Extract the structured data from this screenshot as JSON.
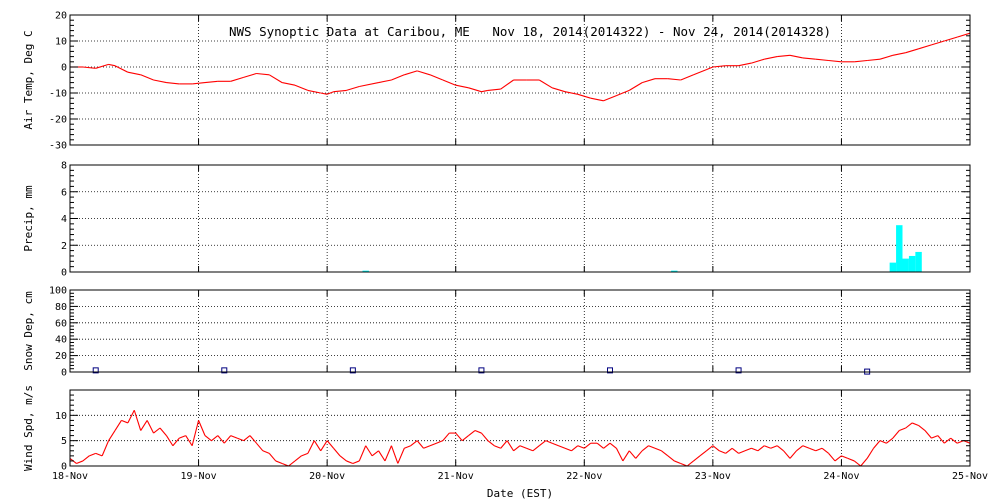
{
  "chart_data": {
    "type": "line",
    "title": "NWS Synoptic Data at Caribou, ME   Nov 18, 2014(2014322) - Nov 24, 2014(2014328)",
    "xlabel": "Date (EST)",
    "x_ticks": [
      "18-Nov",
      "19-Nov",
      "20-Nov",
      "21-Nov",
      "22-Nov",
      "23-Nov",
      "24-Nov",
      "25-Nov"
    ],
    "xlim": [
      0,
      7
    ],
    "grid": true,
    "line_color": "#ff0000",
    "precip_color": "#00ffff",
    "snow_color": "#000080",
    "panels": [
      {
        "key": "temp",
        "type": "line",
        "ylabel": "Air Temp, Deg C",
        "ylim": [
          -30,
          20
        ],
        "yticks": [
          -30,
          -20,
          -10,
          0,
          10,
          20
        ],
        "series": {
          "x": [
            0,
            0.1,
            0.2,
            0.3,
            0.35,
            0.45,
            0.55,
            0.65,
            0.75,
            0.85,
            0.95,
            1.05,
            1.15,
            1.25,
            1.35,
            1.45,
            1.55,
            1.65,
            1.75,
            1.85,
            1.95,
            2.0,
            2.05,
            2.15,
            2.25,
            2.4,
            2.5,
            2.6,
            2.7,
            2.8,
            2.9,
            3.0,
            3.1,
            3.2,
            3.25,
            3.35,
            3.45,
            3.55,
            3.65,
            3.75,
            3.85,
            3.95,
            4.05,
            4.15,
            4.25,
            4.35,
            4.45,
            4.55,
            4.65,
            4.75,
            4.85,
            4.95,
            5.0,
            5.1,
            5.2,
            5.3,
            5.4,
            5.5,
            5.6,
            5.7,
            5.8,
            5.9,
            6.0,
            6.1,
            6.2,
            6.3,
            6.4,
            6.5,
            6.6,
            6.7,
            6.8,
            6.9,
            7.0
          ],
          "y": [
            0,
            0,
            -0.5,
            1,
            0.5,
            -2,
            -3,
            -5,
            -6,
            -6.5,
            -6.5,
            -6,
            -5.5,
            -5.5,
            -4,
            -2.5,
            -3,
            -6,
            -7,
            -9,
            -10,
            -10.5,
            -9.5,
            -9,
            -7.5,
            -6,
            -5,
            -3,
            -1.5,
            -3,
            -5,
            -7,
            -8,
            -9.5,
            -9,
            -8.5,
            -5,
            -5,
            -5,
            -8,
            -9.5,
            -10.5,
            -12,
            -13,
            -11,
            -9,
            -6,
            -4.5,
            -4.5,
            -5,
            -3,
            -1,
            0,
            0.5,
            0.5,
            1.5,
            3,
            4,
            4.5,
            3.5,
            3,
            2.5,
            2,
            2,
            2.5,
            3,
            4.5,
            5.5,
            7,
            8.5,
            10,
            11.5,
            13
          ]
        }
      },
      {
        "key": "precip",
        "type": "bar",
        "ylabel": "Precip, mm",
        "ylim": [
          0,
          8
        ],
        "yticks": [
          0,
          2,
          4,
          6,
          8
        ],
        "bars": [
          {
            "x": 2.3,
            "value": 0.1
          },
          {
            "x": 4.7,
            "value": 0.1
          },
          {
            "x": 6.4,
            "value": 0.7
          },
          {
            "x": 6.45,
            "value": 3.5
          },
          {
            "x": 6.5,
            "value": 1.0
          },
          {
            "x": 6.55,
            "value": 1.2
          },
          {
            "x": 6.6,
            "value": 1.5
          }
        ]
      },
      {
        "key": "snow",
        "type": "scatter",
        "ylabel": "Snow Dep, cm",
        "ylim": [
          0,
          100
        ],
        "yticks": [
          0,
          20,
          40,
          60,
          80,
          100
        ],
        "points": [
          {
            "x": 0.2,
            "value": 2
          },
          {
            "x": 1.2,
            "value": 2
          },
          {
            "x": 2.2,
            "value": 2
          },
          {
            "x": 3.2,
            "value": 2
          },
          {
            "x": 4.2,
            "value": 2
          },
          {
            "x": 5.2,
            "value": 2
          },
          {
            "x": 6.2,
            "value": 0.5
          }
        ]
      },
      {
        "key": "wind",
        "type": "line",
        "ylabel": "Wind Spd, m/s",
        "ylim": [
          0,
          15
        ],
        "yticks": [
          0,
          5,
          10
        ],
        "series": {
          "x": [
            0,
            0.05,
            0.1,
            0.15,
            0.2,
            0.25,
            0.3,
            0.35,
            0.4,
            0.45,
            0.5,
            0.55,
            0.6,
            0.65,
            0.7,
            0.75,
            0.8,
            0.85,
            0.9,
            0.95,
            1.0,
            1.05,
            1.1,
            1.15,
            1.2,
            1.25,
            1.3,
            1.35,
            1.4,
            1.45,
            1.5,
            1.55,
            1.6,
            1.65,
            1.7,
            1.75,
            1.8,
            1.85,
            1.9,
            1.95,
            2.0,
            2.05,
            2.1,
            2.15,
            2.2,
            2.25,
            2.3,
            2.35,
            2.4,
            2.45,
            2.5,
            2.55,
            2.6,
            2.65,
            2.7,
            2.75,
            2.8,
            2.85,
            2.9,
            2.95,
            3.0,
            3.05,
            3.1,
            3.15,
            3.2,
            3.25,
            3.3,
            3.35,
            3.4,
            3.45,
            3.5,
            3.55,
            3.6,
            3.65,
            3.7,
            3.75,
            3.8,
            3.85,
            3.9,
            3.95,
            4.0,
            4.05,
            4.1,
            4.15,
            4.2,
            4.25,
            4.3,
            4.35,
            4.4,
            4.45,
            4.5,
            4.55,
            4.6,
            4.65,
            4.7,
            4.75,
            4.8,
            4.85,
            4.9,
            4.95,
            5.0,
            5.05,
            5.1,
            5.15,
            5.2,
            5.25,
            5.3,
            5.35,
            5.4,
            5.45,
            5.5,
            5.55,
            5.6,
            5.65,
            5.7,
            5.75,
            5.8,
            5.85,
            5.9,
            5.95,
            6.0,
            6.05,
            6.1,
            6.15,
            6.2,
            6.25,
            6.3,
            6.35,
            6.4,
            6.45,
            6.5,
            6.55,
            6.6,
            6.65,
            6.7,
            6.75,
            6.8,
            6.85,
            6.9,
            6.95,
            7.0
          ],
          "y": [
            1.5,
            0.5,
            1,
            2,
            2.5,
            2,
            5,
            7,
            9,
            8.5,
            11,
            7,
            9,
            6.5,
            7.5,
            6,
            4,
            5.5,
            6,
            4,
            9,
            6,
            5,
            6,
            4.5,
            6,
            5.5,
            5,
            6,
            4.5,
            3,
            2.5,
            1,
            0.5,
            0,
            1,
            2,
            2.5,
            5,
            3,
            5,
            3.5,
            2,
            1,
            0.5,
            1,
            4,
            2,
            3,
            1,
            4,
            0.5,
            3.5,
            4,
            5,
            3.5,
            4,
            4.5,
            5,
            6.5,
            6.5,
            5,
            6,
            7,
            6.5,
            5,
            4,
            3.5,
            5,
            3,
            4,
            3.5,
            3,
            4,
            5,
            4.5,
            4,
            3.5,
            3,
            4,
            3.5,
            4.5,
            4.5,
            3.5,
            4.5,
            3.5,
            1,
            3,
            1.5,
            3,
            4,
            3.5,
            3,
            2,
            1,
            0.5,
            0,
            1,
            2,
            3,
            4,
            3,
            2.5,
            3.5,
            2.5,
            3,
            3.5,
            3,
            4,
            3.5,
            4,
            3,
            1.5,
            3,
            4,
            3.5,
            3,
            3.5,
            2.5,
            1,
            2,
            1.5,
            1,
            0,
            1.5,
            3.5,
            5,
            4.5,
            5.5,
            7,
            7.5,
            8.5,
            8,
            7,
            5.5,
            6,
            4.5,
            5.5,
            4.5,
            5,
            4.5
          ]
        }
      }
    ]
  }
}
